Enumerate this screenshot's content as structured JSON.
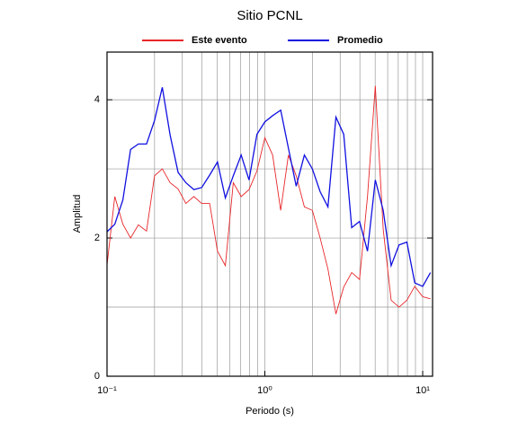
{
  "chart_data": {
    "type": "line",
    "title": "Sitio PCNL",
    "xlabel": "Periodo (s)",
    "ylabel": "Amplitud",
    "xscale": "log",
    "x": [
      0.1,
      0.112,
      0.126,
      0.141,
      0.158,
      0.178,
      0.2,
      0.224,
      0.251,
      0.282,
      0.316,
      0.355,
      0.398,
      0.447,
      0.501,
      0.562,
      0.631,
      0.708,
      0.794,
      0.891,
      1,
      1.12,
      1.26,
      1.41,
      1.58,
      1.78,
      2,
      2.24,
      2.51,
      2.82,
      3.16,
      3.55,
      3.98,
      4.47,
      5.01,
      5.62,
      6.31,
      7.08,
      7.94,
      8.91,
      10,
      11.2
    ],
    "series": [
      {
        "name": "Este evento",
        "color": "#e8262a",
        "values": [
          1.61,
          2.6,
          2.2,
          2.0,
          2.19,
          2.1,
          2.9,
          3.0,
          2.8,
          2.71,
          2.5,
          2.6,
          2.5,
          2.5,
          1.81,
          1.6,
          2.8,
          2.6,
          2.7,
          2.97,
          3.45,
          3.2,
          2.4,
          3.2,
          2.9,
          2.45,
          2.4,
          2.0,
          1.55,
          0.9,
          1.29,
          1.5,
          1.4,
          2.6,
          4.2,
          2.13,
          1.1,
          1.0,
          1.1,
          1.3,
          1.15,
          1.12
        ]
      },
      {
        "name": "Promedio",
        "color": "#1010e0",
        "values": [
          2.09,
          2.2,
          2.55,
          3.28,
          3.36,
          3.36,
          3.7,
          4.18,
          3.49,
          2.95,
          2.8,
          2.7,
          2.73,
          2.91,
          3.1,
          2.58,
          2.9,
          3.2,
          2.84,
          3.5,
          3.68,
          3.77,
          3.85,
          3.3,
          2.75,
          3.2,
          3.0,
          2.67,
          2.45,
          3.75,
          3.5,
          2.15,
          2.24,
          1.81,
          2.84,
          2.4,
          1.6,
          1.9,
          1.94,
          1.35,
          1.3,
          1.5
        ]
      }
    ],
    "xlim": [
      0.1,
      11.55
    ],
    "ylim": [
      0,
      4.69
    ],
    "xticks": [
      {
        "value": 0.1,
        "label": "10⁻¹"
      },
      {
        "value": 1,
        "label": "10⁰"
      },
      {
        "value": 10,
        "label": "10¹"
      }
    ],
    "yticks": [
      0,
      2,
      4
    ],
    "xgrid": [
      0.2,
      0.3,
      0.4,
      0.5,
      0.6,
      0.7,
      0.8,
      0.9,
      1,
      2,
      3,
      4,
      5,
      6,
      7,
      8,
      9,
      10
    ],
    "ygrid": [
      1,
      2,
      3,
      4
    ],
    "legend": "top"
  }
}
